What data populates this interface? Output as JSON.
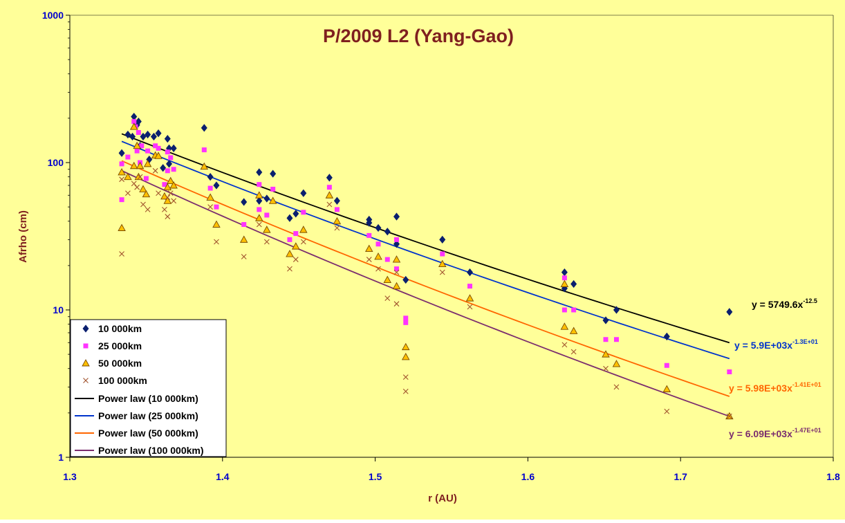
{
  "chart_data": {
    "type": "scatter",
    "title": "P/2009 L2 (Yang-Gao)",
    "xlabel": "r (AU)",
    "ylabel": "Afrho (cm)",
    "xlim": [
      1.3,
      1.8
    ],
    "ylim": [
      1,
      1000
    ],
    "yscale": "log",
    "x_ticks": [
      "1.3",
      "1.4",
      "1.5",
      "1.6",
      "1.7",
      "1.8"
    ],
    "y_ticks": [
      "1",
      "10",
      "100",
      "1000"
    ],
    "grid": false,
    "legend_position": "bottom-left",
    "colors": {
      "plot_background": "#ffff99",
      "title": "#7f1f1f",
      "axis_label": "#7f1f1f",
      "tick_label": "#0000cc",
      "series_10000": "#0a1f6e",
      "series_25000": "#ff33ff",
      "series_50000": "#ffc000",
      "series_100000": "#a0522d",
      "fit_10000": "#000000",
      "fit_25000": "#0033cc",
      "fit_50000": "#ff6600",
      "fit_100000": "#7b2d6e"
    },
    "series": [
      {
        "name": "10 000km",
        "marker": "diamond",
        "points": [
          [
            1.334,
            116
          ],
          [
            1.338,
            155
          ],
          [
            1.341,
            150
          ],
          [
            1.342,
            205
          ],
          [
            1.344,
            180
          ],
          [
            1.345,
            190
          ],
          [
            1.346,
            130
          ],
          [
            1.348,
            150
          ],
          [
            1.351,
            155
          ],
          [
            1.352,
            105
          ],
          [
            1.355,
            150
          ],
          [
            1.358,
            158
          ],
          [
            1.361,
            92
          ],
          [
            1.364,
            145
          ],
          [
            1.365,
            125
          ],
          [
            1.365,
            98
          ],
          [
            1.368,
            125
          ],
          [
            1.388,
            172
          ],
          [
            1.392,
            80
          ],
          [
            1.396,
            70
          ],
          [
            1.414,
            54
          ],
          [
            1.424,
            86
          ],
          [
            1.424,
            55
          ],
          [
            1.429,
            57
          ],
          [
            1.433,
            84
          ],
          [
            1.444,
            42
          ],
          [
            1.448,
            45
          ],
          [
            1.453,
            62
          ],
          [
            1.47,
            79
          ],
          [
            1.475,
            55
          ],
          [
            1.496,
            41
          ],
          [
            1.496,
            39
          ],
          [
            1.502,
            36
          ],
          [
            1.508,
            34
          ],
          [
            1.514,
            28
          ],
          [
            1.514,
            43
          ],
          [
            1.52,
            16
          ],
          [
            1.544,
            30
          ],
          [
            1.562,
            18
          ],
          [
            1.624,
            18
          ],
          [
            1.624,
            14
          ],
          [
            1.63,
            15
          ],
          [
            1.651,
            8.5
          ],
          [
            1.658,
            10
          ],
          [
            1.691,
            6.6
          ],
          [
            1.732,
            9.7
          ]
        ]
      },
      {
        "name": "25 000km",
        "marker": "square",
        "points": [
          [
            1.334,
            98
          ],
          [
            1.334,
            56
          ],
          [
            1.338,
            109
          ],
          [
            1.342,
            190
          ],
          [
            1.343,
            175
          ],
          [
            1.344,
            120
          ],
          [
            1.345,
            160
          ],
          [
            1.346,
            100
          ],
          [
            1.347,
            130
          ],
          [
            1.35,
            78
          ],
          [
            1.351,
            120
          ],
          [
            1.356,
            130
          ],
          [
            1.358,
            125
          ],
          [
            1.362,
            71
          ],
          [
            1.364,
            88
          ],
          [
            1.364,
            118
          ],
          [
            1.366,
            108
          ],
          [
            1.368,
            90
          ],
          [
            1.388,
            122
          ],
          [
            1.392,
            67
          ],
          [
            1.396,
            50
          ],
          [
            1.414,
            38
          ],
          [
            1.424,
            71
          ],
          [
            1.424,
            48
          ],
          [
            1.429,
            44
          ],
          [
            1.433,
            66
          ],
          [
            1.444,
            30
          ],
          [
            1.448,
            33
          ],
          [
            1.453,
            46
          ],
          [
            1.47,
            68
          ],
          [
            1.475,
            48
          ],
          [
            1.496,
            32
          ],
          [
            1.502,
            28
          ],
          [
            1.508,
            22
          ],
          [
            1.514,
            30
          ],
          [
            1.514,
            19
          ],
          [
            1.52,
            8.8
          ],
          [
            1.52,
            8.2
          ],
          [
            1.544,
            24
          ],
          [
            1.562,
            14.5
          ],
          [
            1.624,
            16.5
          ],
          [
            1.624,
            10
          ],
          [
            1.63,
            10
          ],
          [
            1.651,
            6.3
          ],
          [
            1.658,
            6.3
          ],
          [
            1.691,
            4.2
          ],
          [
            1.732,
            3.8
          ]
        ]
      },
      {
        "name": "50 000km",
        "marker": "triangle",
        "points": [
          [
            1.334,
            36
          ],
          [
            1.334,
            86
          ],
          [
            1.338,
            80
          ],
          [
            1.342,
            95
          ],
          [
            1.342,
            175
          ],
          [
            1.344,
            130
          ],
          [
            1.345,
            80
          ],
          [
            1.346,
            95
          ],
          [
            1.348,
            66
          ],
          [
            1.35,
            61
          ],
          [
            1.351,
            98
          ],
          [
            1.356,
            112
          ],
          [
            1.358,
            111
          ],
          [
            1.362,
            59
          ],
          [
            1.364,
            55
          ],
          [
            1.364,
            68
          ],
          [
            1.366,
            75
          ],
          [
            1.368,
            70
          ],
          [
            1.388,
            94
          ],
          [
            1.392,
            58
          ],
          [
            1.396,
            38
          ],
          [
            1.414,
            30
          ],
          [
            1.424,
            60
          ],
          [
            1.424,
            42
          ],
          [
            1.429,
            35
          ],
          [
            1.433,
            55
          ],
          [
            1.444,
            24
          ],
          [
            1.448,
            27
          ],
          [
            1.453,
            35
          ],
          [
            1.47,
            60
          ],
          [
            1.475,
            40
          ],
          [
            1.496,
            26
          ],
          [
            1.502,
            23
          ],
          [
            1.508,
            16
          ],
          [
            1.514,
            22
          ],
          [
            1.514,
            14.5
          ],
          [
            1.52,
            5.6
          ],
          [
            1.52,
            4.8
          ],
          [
            1.544,
            20.5
          ],
          [
            1.562,
            12
          ],
          [
            1.624,
            15
          ],
          [
            1.624,
            7.7
          ],
          [
            1.63,
            7.2
          ],
          [
            1.651,
            5
          ],
          [
            1.658,
            4.3
          ],
          [
            1.691,
            2.9
          ],
          [
            1.732,
            1.9
          ]
        ]
      },
      {
        "name": "100 000km",
        "marker": "x",
        "points": [
          [
            1.334,
            24
          ],
          [
            1.334,
            77
          ],
          [
            1.338,
            62
          ],
          [
            1.342,
            72
          ],
          [
            1.344,
            68
          ],
          [
            1.346,
            80
          ],
          [
            1.348,
            52
          ],
          [
            1.351,
            48
          ],
          [
            1.356,
            88
          ],
          [
            1.358,
            62
          ],
          [
            1.362,
            48
          ],
          [
            1.364,
            43
          ],
          [
            1.364,
            58
          ],
          [
            1.366,
            62
          ],
          [
            1.368,
            55
          ],
          [
            1.392,
            50
          ],
          [
            1.396,
            29
          ],
          [
            1.414,
            23
          ],
          [
            1.424,
            38
          ],
          [
            1.429,
            29
          ],
          [
            1.444,
            19
          ],
          [
            1.448,
            22
          ],
          [
            1.453,
            29
          ],
          [
            1.47,
            52
          ],
          [
            1.475,
            36
          ],
          [
            1.496,
            22
          ],
          [
            1.502,
            19
          ],
          [
            1.508,
            12
          ],
          [
            1.514,
            11
          ],
          [
            1.514,
            18
          ],
          [
            1.52,
            3.5
          ],
          [
            1.52,
            2.8
          ],
          [
            1.544,
            18
          ],
          [
            1.562,
            10.5
          ],
          [
            1.624,
            5.8
          ],
          [
            1.63,
            5.2
          ],
          [
            1.651,
            4
          ],
          [
            1.658,
            3
          ],
          [
            1.691,
            2.05
          ],
          [
            1.732,
            1.9
          ]
        ]
      }
    ],
    "fits": [
      {
        "name": "Power law (10 000km)",
        "a": 5749.6,
        "b": -12.5,
        "x_range": [
          1.334,
          1.732
        ],
        "equation_base": "y = 5749.6x",
        "equation_exp": "-12.5"
      },
      {
        "name": "Power law (25 000km)",
        "a": 5900,
        "b": -13,
        "x_range": [
          1.334,
          1.732
        ],
        "equation_base": "y = 5.9E+03x",
        "equation_exp": "-1.3E+01"
      },
      {
        "name": "Power law (50 000km)",
        "a": 5980,
        "b": -14.1,
        "x_range": [
          1.334,
          1.732
        ],
        "equation_base": "y = 5.98E+03x",
        "equation_exp": "-1.41E+01"
      },
      {
        "name": "Power law (100 000km)",
        "a": 6090,
        "b": -14.7,
        "x_range": [
          1.334,
          1.732
        ],
        "equation_base": "y = 6.09E+03x",
        "equation_exp": "-1.47E+01"
      }
    ]
  }
}
